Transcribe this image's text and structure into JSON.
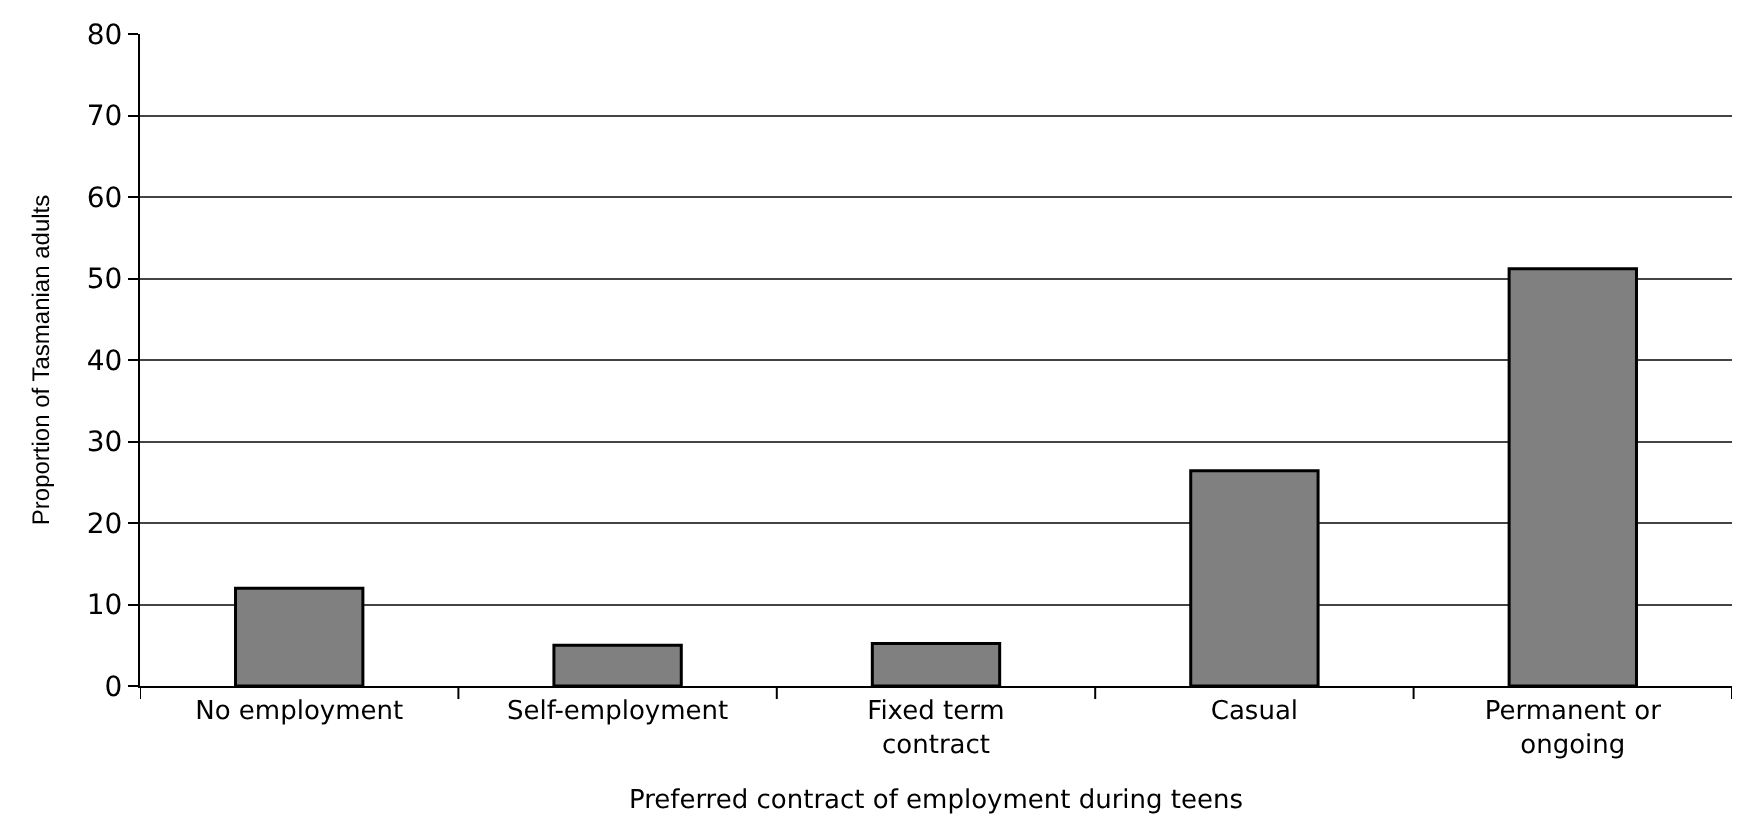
{
  "chart_data": {
    "type": "bar",
    "xlabel": "Preferred contract of employment during teens",
    "ylabel": "Proportion of Tasmanian adults",
    "categories": [
      "No employment",
      "Self-employment",
      "Fixed term\ncontract",
      "Casual",
      "Permanent or\nongoing"
    ],
    "values": [
      12,
      5,
      5.2,
      26.4,
      51.2
    ],
    "color": "#808080",
    "ylim": [
      0,
      80
    ],
    "yticks": [
      0,
      10,
      20,
      30,
      40,
      50,
      60,
      70,
      80
    ],
    "grid": "y",
    "legend": false
  }
}
